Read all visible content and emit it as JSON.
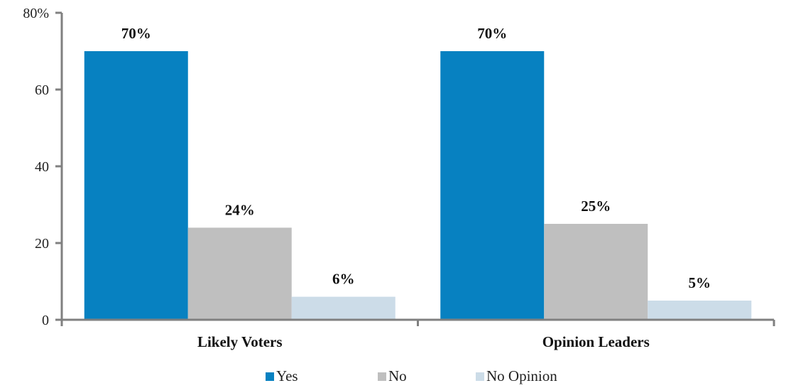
{
  "chart_data": {
    "type": "bar",
    "categories": [
      "Likely Voters",
      "Opinion Leaders"
    ],
    "series": [
      {
        "name": "Yes",
        "values": [
          70,
          70
        ],
        "labels": [
          "70%",
          "70%"
        ],
        "color": "#0781C1"
      },
      {
        "name": "No",
        "values": [
          24,
          25
        ],
        "labels": [
          "24%",
          "25%"
        ],
        "color": "#BFBFBF"
      },
      {
        "name": "No Opinion",
        "values": [
          6,
          5
        ],
        "labels": [
          "6%",
          "5%"
        ],
        "color": "#CCDCE8"
      }
    ],
    "yticks": [
      "0",
      "20",
      "40",
      "60",
      "80%"
    ],
    "ylim": [
      0,
      80
    ],
    "legend_position": "bottom",
    "grid": false
  }
}
